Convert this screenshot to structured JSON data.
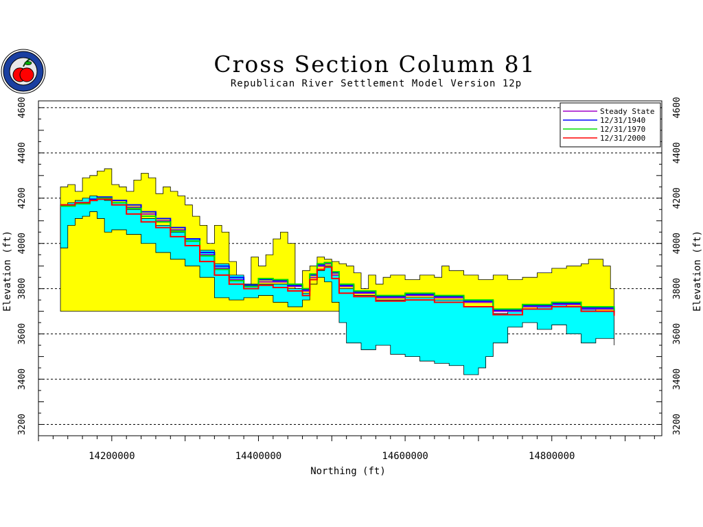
{
  "chart_data": {
    "type": "area",
    "title": "Cross Section Column 81",
    "subtitle": "Republican River Settlement Model Version 12p",
    "xlabel": "Northing (ft)",
    "ylabel": "Elevation (ft)",
    "ylabel_right": "Elevation (ft)",
    "xlim": [
      14100000,
      14950000
    ],
    "ylim": [
      3150000,
      4630000
    ],
    "x_ticks": [
      14200000,
      14400000,
      14600000,
      14800000
    ],
    "y_ticks": [
      3200,
      3400,
      3600,
      3800,
      4000,
      4200,
      4400,
      4600
    ],
    "grid": "horizontal-dashed",
    "legend_position": "top-right",
    "colors": {
      "upper_layer": "#ffff00",
      "lower_layer": "#00ffff",
      "steady_state": "#a000c8",
      "1940": "#0000ff",
      "1970": "#00dd00",
      "2000": "#ff0000"
    },
    "layers": [
      {
        "fill": "upper_layer",
        "top": [
          [
            14130000,
            4250
          ],
          [
            14140000,
            4260
          ],
          [
            14150000,
            4230
          ],
          [
            14160000,
            4290
          ],
          [
            14170000,
            4300
          ],
          [
            14180000,
            4320
          ],
          [
            14190000,
            4330
          ],
          [
            14200000,
            4260
          ],
          [
            14210000,
            4250
          ],
          [
            14220000,
            4230
          ],
          [
            14230000,
            4280
          ],
          [
            14240000,
            4310
          ],
          [
            14250000,
            4290
          ],
          [
            14260000,
            4220
          ],
          [
            14270000,
            4250
          ],
          [
            14280000,
            4230
          ],
          [
            14290000,
            4210
          ],
          [
            14300000,
            4170
          ],
          [
            14310000,
            4120
          ],
          [
            14320000,
            4080
          ],
          [
            14330000,
            4000
          ],
          [
            14340000,
            4080
          ],
          [
            14350000,
            4050
          ],
          [
            14360000,
            3920
          ],
          [
            14370000,
            3850
          ],
          [
            14380000,
            3820
          ],
          [
            14390000,
            3940
          ],
          [
            14400000,
            3900
          ],
          [
            14410000,
            3950
          ],
          [
            14420000,
            4020
          ],
          [
            14430000,
            4050
          ],
          [
            14440000,
            4000
          ],
          [
            14450000,
            3800
          ],
          [
            14460000,
            3880
          ],
          [
            14470000,
            3900
          ],
          [
            14480000,
            3940
          ],
          [
            14490000,
            3930
          ],
          [
            14500000,
            3920
          ],
          [
            14510000,
            3910
          ],
          [
            14520000,
            3900
          ],
          [
            14530000,
            3870
          ],
          [
            14540000,
            3800
          ],
          [
            14550000,
            3860
          ],
          [
            14560000,
            3820
          ],
          [
            14570000,
            3850
          ],
          [
            14580000,
            3860
          ],
          [
            14600000,
            3840
          ],
          [
            14620000,
            3860
          ],
          [
            14640000,
            3850
          ],
          [
            14650000,
            3900
          ],
          [
            14660000,
            3880
          ],
          [
            14680000,
            3860
          ],
          [
            14700000,
            3840
          ],
          [
            14720000,
            3860
          ],
          [
            14740000,
            3840
          ],
          [
            14760000,
            3850
          ],
          [
            14780000,
            3870
          ],
          [
            14800000,
            3890
          ],
          [
            14820000,
            3900
          ],
          [
            14840000,
            3910
          ],
          [
            14850000,
            3930
          ],
          [
            14870000,
            3900
          ],
          [
            14880000,
            3800
          ],
          [
            14885000,
            3700
          ]
        ]
      },
      {
        "fill": "lower_layer",
        "top": [
          [
            14130000,
            4170
          ],
          [
            14140000,
            4180
          ],
          [
            14150000,
            4190
          ],
          [
            14160000,
            4200
          ],
          [
            14170000,
            4210
          ],
          [
            14180000,
            4200
          ],
          [
            14190000,
            4190
          ],
          [
            14200000,
            4180
          ],
          [
            14220000,
            4150
          ],
          [
            14240000,
            4110
          ],
          [
            14260000,
            4080
          ],
          [
            14280000,
            4050
          ],
          [
            14300000,
            4020
          ],
          [
            14320000,
            3970
          ],
          [
            14340000,
            3910
          ],
          [
            14360000,
            3860
          ],
          [
            14380000,
            3820
          ],
          [
            14400000,
            3820
          ],
          [
            14420000,
            3820
          ],
          [
            14440000,
            3800
          ],
          [
            14460000,
            3780
          ],
          [
            14470000,
            3820
          ],
          [
            14480000,
            3880
          ],
          [
            14490000,
            3900
          ],
          [
            14500000,
            3860
          ],
          [
            14510000,
            3800
          ],
          [
            14530000,
            3770
          ],
          [
            14560000,
            3750
          ],
          [
            14600000,
            3760
          ],
          [
            14640000,
            3750
          ],
          [
            14680000,
            3720
          ],
          [
            14720000,
            3690
          ],
          [
            14740000,
            3700
          ],
          [
            14760000,
            3710
          ],
          [
            14780000,
            3720
          ],
          [
            14800000,
            3730
          ],
          [
            14820000,
            3720
          ],
          [
            14840000,
            3710
          ],
          [
            14860000,
            3700
          ],
          [
            14885000,
            3690
          ]
        ],
        "bottom": [
          [
            14130000,
            3980
          ],
          [
            14140000,
            4080
          ],
          [
            14150000,
            4110
          ],
          [
            14160000,
            4120
          ],
          [
            14170000,
            4140
          ],
          [
            14180000,
            4110
          ],
          [
            14190000,
            4050
          ],
          [
            14200000,
            4060
          ],
          [
            14220000,
            4040
          ],
          [
            14240000,
            4000
          ],
          [
            14260000,
            3960
          ],
          [
            14280000,
            3930
          ],
          [
            14300000,
            3900
          ],
          [
            14320000,
            3850
          ],
          [
            14340000,
            3760
          ],
          [
            14360000,
            3750
          ],
          [
            14380000,
            3760
          ],
          [
            14400000,
            3770
          ],
          [
            14420000,
            3740
          ],
          [
            14440000,
            3720
          ],
          [
            14460000,
            3750
          ],
          [
            14470000,
            3820
          ],
          [
            14480000,
            3850
          ],
          [
            14490000,
            3830
          ],
          [
            14500000,
            3740
          ],
          [
            14510000,
            3650
          ],
          [
            14520000,
            3560
          ],
          [
            14540000,
            3530
          ],
          [
            14560000,
            3550
          ],
          [
            14580000,
            3510
          ],
          [
            14600000,
            3500
          ],
          [
            14620000,
            3480
          ],
          [
            14640000,
            3470
          ],
          [
            14660000,
            3460
          ],
          [
            14680000,
            3420
          ],
          [
            14700000,
            3450
          ],
          [
            14710000,
            3500
          ],
          [
            14720000,
            3560
          ],
          [
            14740000,
            3630
          ],
          [
            14760000,
            3650
          ],
          [
            14780000,
            3620
          ],
          [
            14800000,
            3640
          ],
          [
            14820000,
            3600
          ],
          [
            14840000,
            3560
          ],
          [
            14860000,
            3580
          ],
          [
            14885000,
            3550
          ]
        ]
      }
    ],
    "series": [
      {
        "name": "Steady State",
        "color": "steady_state",
        "points": [
          [
            14130000,
            4170
          ],
          [
            14150000,
            4180
          ],
          [
            14170000,
            4195
          ],
          [
            14180000,
            4200
          ],
          [
            14200000,
            4190
          ],
          [
            14220000,
            4160
          ],
          [
            14240000,
            4130
          ],
          [
            14260000,
            4100
          ],
          [
            14280000,
            4060
          ],
          [
            14300000,
            4010
          ],
          [
            14320000,
            3950
          ],
          [
            14340000,
            3890
          ],
          [
            14360000,
            3840
          ],
          [
            14380000,
            3810
          ],
          [
            14400000,
            3830
          ],
          [
            14420000,
            3830
          ],
          [
            14440000,
            3810
          ],
          [
            14460000,
            3790
          ],
          [
            14470000,
            3850
          ],
          [
            14480000,
            3900
          ],
          [
            14490000,
            3910
          ],
          [
            14500000,
            3860
          ],
          [
            14510000,
            3810
          ],
          [
            14530000,
            3780
          ],
          [
            14560000,
            3760
          ],
          [
            14600000,
            3770
          ],
          [
            14640000,
            3760
          ],
          [
            14680000,
            3740
          ],
          [
            14720000,
            3700
          ],
          [
            14760000,
            3720
          ],
          [
            14800000,
            3730
          ],
          [
            14840000,
            3710
          ],
          [
            14885000,
            3690
          ]
        ]
      },
      {
        "name": "12/31/1940",
        "color": "1940",
        "points": [
          [
            14130000,
            4170
          ],
          [
            14150000,
            4180
          ],
          [
            14170000,
            4195
          ],
          [
            14180000,
            4205
          ],
          [
            14200000,
            4190
          ],
          [
            14220000,
            4170
          ],
          [
            14240000,
            4140
          ],
          [
            14260000,
            4110
          ],
          [
            14280000,
            4070
          ],
          [
            14300000,
            4020
          ],
          [
            14320000,
            3960
          ],
          [
            14340000,
            3900
          ],
          [
            14360000,
            3850
          ],
          [
            14380000,
            3815
          ],
          [
            14400000,
            3840
          ],
          [
            14420000,
            3835
          ],
          [
            14440000,
            3815
          ],
          [
            14460000,
            3795
          ],
          [
            14470000,
            3860
          ],
          [
            14480000,
            3905
          ],
          [
            14490000,
            3915
          ],
          [
            14500000,
            3870
          ],
          [
            14510000,
            3815
          ],
          [
            14530000,
            3785
          ],
          [
            14560000,
            3765
          ],
          [
            14600000,
            3775
          ],
          [
            14640000,
            3765
          ],
          [
            14680000,
            3745
          ],
          [
            14720000,
            3705
          ],
          [
            14760000,
            3725
          ],
          [
            14800000,
            3735
          ],
          [
            14840000,
            3715
          ],
          [
            14885000,
            3695
          ]
        ]
      },
      {
        "name": "12/31/1970",
        "color": "1970",
        "points": [
          [
            14130000,
            4165
          ],
          [
            14150000,
            4175
          ],
          [
            14170000,
            4190
          ],
          [
            14180000,
            4200
          ],
          [
            14200000,
            4180
          ],
          [
            14220000,
            4155
          ],
          [
            14240000,
            4120
          ],
          [
            14260000,
            4095
          ],
          [
            14280000,
            4055
          ],
          [
            14300000,
            4010
          ],
          [
            14320000,
            3945
          ],
          [
            14340000,
            3885
          ],
          [
            14360000,
            3835
          ],
          [
            14380000,
            3810
          ],
          [
            14400000,
            3845
          ],
          [
            14420000,
            3840
          ],
          [
            14440000,
            3820
          ],
          [
            14460000,
            3800
          ],
          [
            14470000,
            3865
          ],
          [
            14480000,
            3910
          ],
          [
            14490000,
            3915
          ],
          [
            14500000,
            3875
          ],
          [
            14510000,
            3820
          ],
          [
            14530000,
            3790
          ],
          [
            14560000,
            3770
          ],
          [
            14600000,
            3780
          ],
          [
            14640000,
            3770
          ],
          [
            14680000,
            3750
          ],
          [
            14720000,
            3710
          ],
          [
            14760000,
            3730
          ],
          [
            14800000,
            3740
          ],
          [
            14840000,
            3720
          ],
          [
            14885000,
            3700
          ]
        ]
      },
      {
        "name": "12/31/2000",
        "color": "2000",
        "points": [
          [
            14130000,
            4170
          ],
          [
            14150000,
            4180
          ],
          [
            14170000,
            4190
          ],
          [
            14180000,
            4195
          ],
          [
            14200000,
            4170
          ],
          [
            14220000,
            4130
          ],
          [
            14240000,
            4095
          ],
          [
            14260000,
            4070
          ],
          [
            14280000,
            4030
          ],
          [
            14300000,
            3990
          ],
          [
            14320000,
            3920
          ],
          [
            14340000,
            3860
          ],
          [
            14360000,
            3820
          ],
          [
            14380000,
            3800
          ],
          [
            14400000,
            3815
          ],
          [
            14420000,
            3805
          ],
          [
            14440000,
            3790
          ],
          [
            14460000,
            3770
          ],
          [
            14470000,
            3840
          ],
          [
            14480000,
            3885
          ],
          [
            14490000,
            3895
          ],
          [
            14500000,
            3845
          ],
          [
            14510000,
            3780
          ],
          [
            14530000,
            3765
          ],
          [
            14560000,
            3745
          ],
          [
            14600000,
            3750
          ],
          [
            14640000,
            3740
          ],
          [
            14680000,
            3720
          ],
          [
            14720000,
            3685
          ],
          [
            14760000,
            3710
          ],
          [
            14800000,
            3720
          ],
          [
            14840000,
            3700
          ],
          [
            14885000,
            3680
          ]
        ]
      }
    ]
  }
}
